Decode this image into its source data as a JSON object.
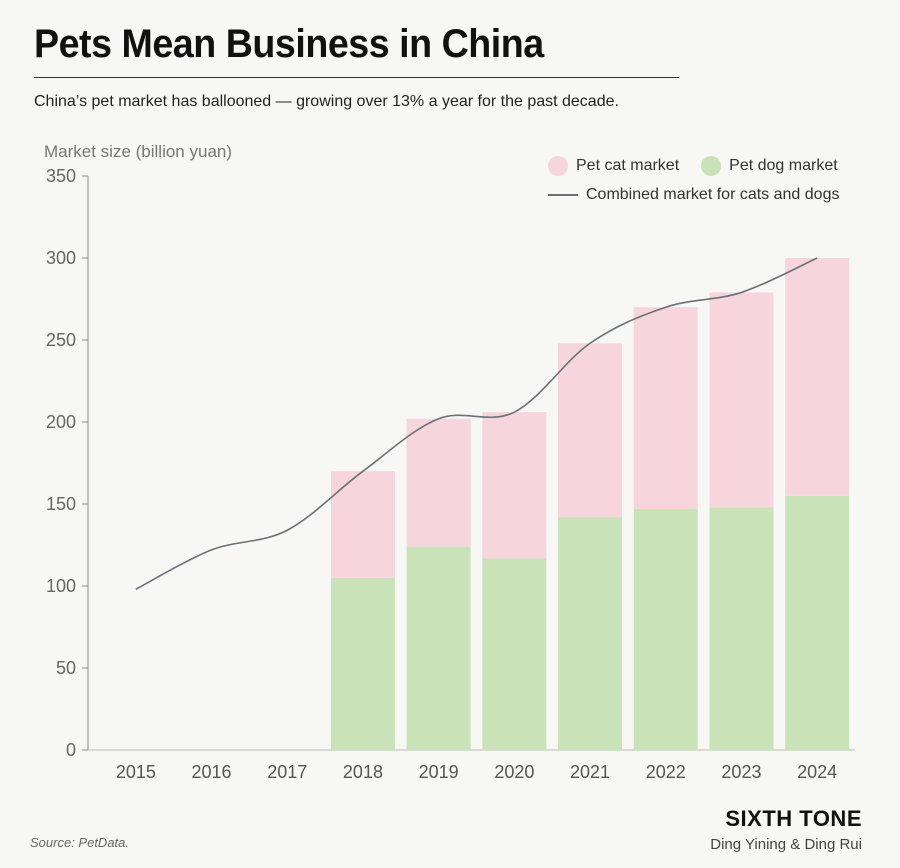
{
  "header": {
    "title": "Pets Mean Business in China",
    "subtitle": "China’s pet market has ballooned — growing over 13% a year for the past decade."
  },
  "legend": {
    "cat": "Pet cat market",
    "dog": "Pet dog market",
    "combined": "Combined market for cats and dogs"
  },
  "footer": {
    "source": "Source: PetData.",
    "brand": "SIXTH TONE",
    "credit": "Ding Yining & Ding Rui"
  },
  "colors": {
    "cat": "#f6d5dd",
    "dog": "#c9e2b8",
    "line": "#6b6f78",
    "axis": "#666666"
  },
  "chart_data": {
    "type": "bar",
    "stacked": true,
    "ylabel": "Market size (billion yuan)",
    "ylim": [
      0,
      350
    ],
    "yticks": [
      0,
      50,
      100,
      150,
      200,
      250,
      300,
      350
    ],
    "categories": [
      "2015",
      "2016",
      "2017",
      "2018",
      "2019",
      "2020",
      "2021",
      "2022",
      "2023",
      "2024"
    ],
    "series": [
      {
        "name": "Pet dog market",
        "values": [
          null,
          null,
          null,
          105,
          124,
          117,
          142,
          147,
          148,
          155
        ]
      },
      {
        "name": "Pet cat market",
        "values": [
          null,
          null,
          null,
          65,
          78,
          89,
          106,
          123,
          131,
          145
        ]
      }
    ],
    "line": {
      "name": "Combined market for cats and dogs",
      "values": [
        98,
        122,
        134,
        170,
        202,
        206,
        248,
        270,
        279,
        300
      ]
    },
    "grid": false,
    "legend_position": "top-right"
  }
}
